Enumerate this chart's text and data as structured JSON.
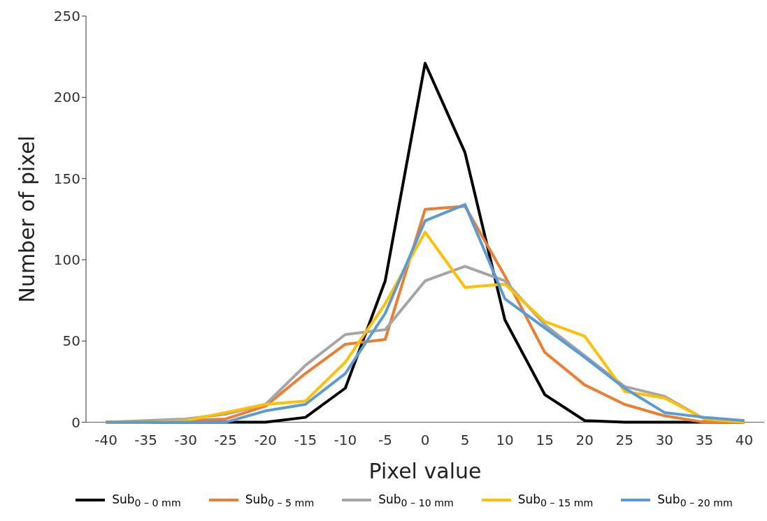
{
  "chart_data": {
    "type": "line",
    "xlabel": "Pixel value",
    "ylabel": "Number of pixel",
    "x": [
      -40,
      -35,
      -30,
      -25,
      -20,
      -15,
      -10,
      -5,
      0,
      5,
      10,
      15,
      20,
      25,
      30,
      35,
      40
    ],
    "xlim": [
      -42.5,
      42.5
    ],
    "xticks": [
      -40,
      -35,
      -30,
      -25,
      -20,
      -15,
      -10,
      -5,
      0,
      5,
      10,
      15,
      20,
      25,
      30,
      35,
      40
    ],
    "ylim": [
      0,
      250
    ],
    "yticks": [
      0,
      50,
      100,
      150,
      200,
      250
    ],
    "grid": false,
    "legend": "bottom",
    "marker": "none",
    "line_style": "solid",
    "series": [
      {
        "name": "Sub$_{0 – 0 mm}$",
        "color": "#000000",
        "values": [
          0,
          0,
          0,
          0,
          0,
          3,
          21,
          87,
          221,
          166,
          63,
          17,
          1,
          0,
          0,
          0,
          0
        ]
      },
      {
        "name": "Sub$_{0 – 5 mm}$",
        "color": "#ed7d31",
        "values": [
          0,
          0,
          1,
          2,
          10,
          30,
          48,
          51,
          131,
          133,
          90,
          43,
          23,
          11,
          4,
          0,
          0
        ]
      },
      {
        "name": "Sub$_{0 – 10 mm}$",
        "color": "#a5a5a5",
        "values": [
          0,
          1,
          2,
          5,
          11,
          35,
          54,
          57,
          87,
          96,
          87,
          60,
          41,
          22,
          16,
          2,
          1
        ]
      },
      {
        "name": "Sub$_{0 – 15 mm}$",
        "color": "#ffc000",
        "values": [
          0,
          0,
          1,
          6,
          11,
          13,
          37,
          73,
          117,
          83,
          85,
          62,
          53,
          19,
          15,
          2,
          0
        ]
      },
      {
        "name": "Sub$_{0 – 20 mm}$",
        "color": "#5b9bd5",
        "values": [
          0,
          0,
          0,
          0,
          7,
          11,
          30,
          67,
          124,
          134,
          76,
          58,
          40,
          21,
          6,
          3,
          1
        ]
      }
    ]
  }
}
